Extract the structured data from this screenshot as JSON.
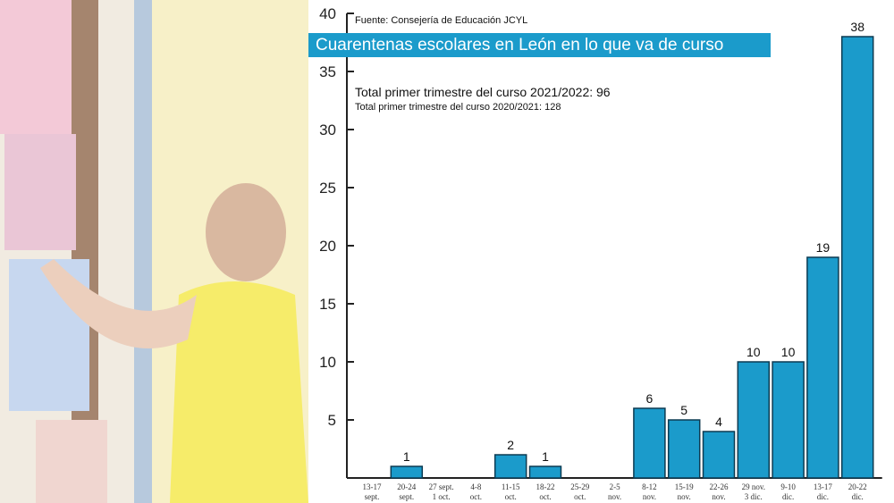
{
  "chart_data": {
    "type": "bar",
    "source": "Fuente: Consejería de Educación JCYL",
    "title": "Cuarentenas escolares en León en lo que va de curso",
    "annotations": [
      "Total primer trimestre del curso 2021/2022: 96",
      "Total primer trimestre del curso 2020/2021: 128"
    ],
    "categories": [
      [
        "13-17",
        "sept."
      ],
      [
        "20-24",
        "sept."
      ],
      [
        "27 sept.",
        "1 oct."
      ],
      [
        "4-8",
        "oct."
      ],
      [
        "11-15",
        "oct."
      ],
      [
        "18-22",
        "oct."
      ],
      [
        "25-29",
        "oct."
      ],
      [
        "2-5",
        "nov."
      ],
      [
        "8-12",
        "nov."
      ],
      [
        "15-19",
        "nov."
      ],
      [
        "22-26",
        "nov."
      ],
      [
        "29 nov.",
        "3 dic."
      ],
      [
        "9-10",
        "dic."
      ],
      [
        "13-17",
        "dic."
      ],
      [
        "20-22",
        "dic."
      ]
    ],
    "values": [
      0,
      1,
      0,
      0,
      2,
      1,
      0,
      0,
      6,
      5,
      4,
      10,
      10,
      19,
      38
    ],
    "yticks": [
      5,
      10,
      15,
      20,
      25,
      30,
      35,
      40
    ],
    "ylim": [
      0,
      40
    ],
    "grid": false,
    "bar_color": "#1b9bcb"
  }
}
